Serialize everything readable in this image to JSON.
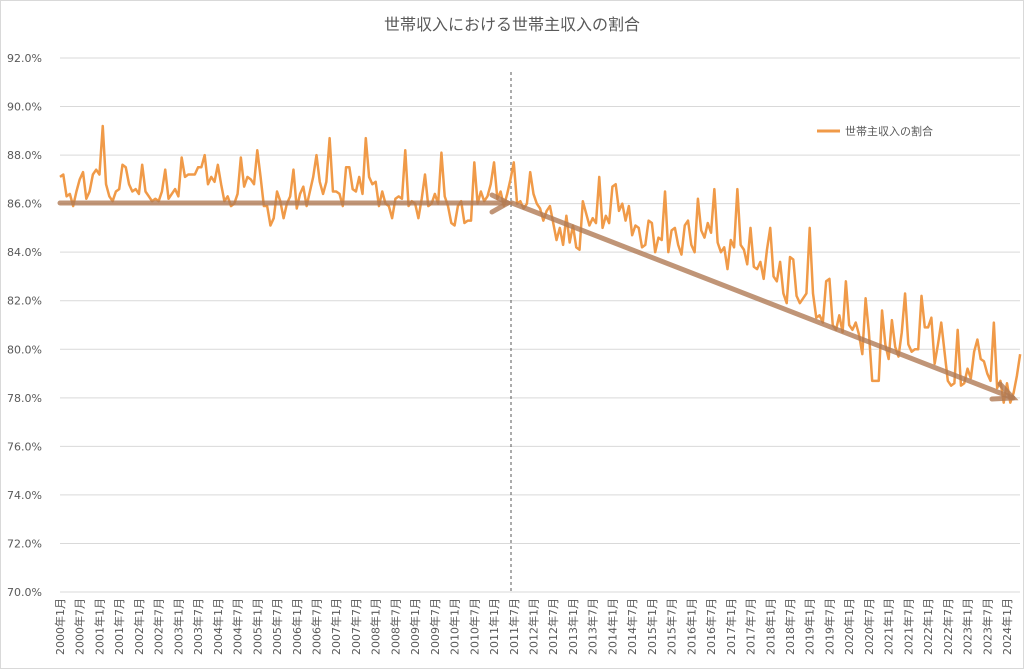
{
  "chart_data": {
    "type": "line",
    "title": "世帯収入における世帯主収入の割合",
    "categories": [
      "2000年1月",
      null,
      null,
      null,
      null,
      null,
      "2000年7月",
      null,
      null,
      null,
      null,
      null,
      "2001年1月",
      null,
      null,
      null,
      null,
      null,
      "2001年7月",
      null,
      null,
      null,
      null,
      null,
      "2002年1月",
      null,
      null,
      null,
      null,
      null,
      "2002年7月",
      null,
      null,
      null,
      null,
      null,
      "2003年1月",
      null,
      null,
      null,
      null,
      null,
      "2003年7月",
      null,
      null,
      null,
      null,
      null,
      "2004年1月",
      null,
      null,
      null,
      null,
      null,
      "2004年7月",
      null,
      null,
      null,
      null,
      null,
      "2005年1月",
      null,
      null,
      null,
      null,
      null,
      "2005年7月",
      null,
      null,
      null,
      null,
      null,
      "2006年1月",
      null,
      null,
      null,
      null,
      null,
      "2006年7月",
      null,
      null,
      null,
      null,
      null,
      "2007年1月",
      null,
      null,
      null,
      null,
      null,
      "2007年7月",
      null,
      null,
      null,
      null,
      null,
      "2008年1月",
      null,
      null,
      null,
      null,
      null,
      "2008年7月",
      null,
      null,
      null,
      null,
      null,
      "2009年1月",
      null,
      null,
      null,
      null,
      null,
      "2009年7月",
      null,
      null,
      null,
      null,
      null,
      "2010年1月",
      null,
      null,
      null,
      null,
      null,
      "2010年7月",
      null,
      null,
      null,
      null,
      null,
      "2011年1月",
      null,
      null,
      null,
      null,
      null,
      "2011年7月",
      null,
      null,
      null,
      null,
      null,
      "2012年1月",
      null,
      null,
      null,
      null,
      null,
      "2012年7月",
      null,
      null,
      null,
      null,
      null,
      "2013年1月",
      null,
      null,
      null,
      null,
      null,
      "2013年7月",
      null,
      null,
      null,
      null,
      null,
      "2014年1月",
      null,
      null,
      null,
      null,
      null,
      "2014年7月",
      null,
      null,
      null,
      null,
      null,
      "2015年1月",
      null,
      null,
      null,
      null,
      null,
      "2015年7月",
      null,
      null,
      null,
      null,
      null,
      "2016年1月",
      null,
      null,
      null,
      null,
      null,
      "2016年7月",
      null,
      null,
      null,
      null,
      null,
      "2017年1月",
      null,
      null,
      null,
      null,
      null,
      "2017年7月",
      null,
      null,
      null,
      null,
      null,
      "2018年1月",
      null,
      null,
      null,
      null,
      null,
      "2018年7月",
      null,
      null,
      null,
      null,
      null,
      "2019年1月",
      null,
      null,
      null,
      null,
      null,
      "2019年7月",
      null,
      null,
      null,
      null,
      null,
      "2020年1月",
      null,
      null,
      null,
      null,
      null,
      "2020年7月",
      null,
      null,
      null,
      null,
      null,
      "2021年1月",
      null,
      null,
      null,
      null,
      null,
      "2021年7月",
      null,
      null,
      null,
      null,
      null,
      "2022年1月",
      null,
      null,
      null,
      null,
      null,
      "2022年7月",
      null,
      null,
      null,
      null,
      null,
      "2023年1月",
      null,
      null,
      null,
      null,
      null,
      "2023年7月",
      null,
      null,
      null,
      null,
      null,
      "2024年1月",
      null,
      null,
      null,
      null
    ],
    "series": [
      {
        "name": "世帯主収入の割合",
        "color": "#f09a48",
        "values": [
          87.1,
          87.2,
          86.3,
          86.4,
          85.9,
          86.5,
          87.0,
          87.3,
          86.2,
          86.5,
          87.2,
          87.4,
          87.2,
          89.2,
          86.8,
          86.3,
          86.1,
          86.5,
          86.6,
          87.6,
          87.5,
          86.8,
          86.5,
          86.6,
          86.4,
          87.6,
          86.5,
          86.3,
          86.1,
          86.2,
          86.1,
          86.5,
          87.4,
          86.2,
          86.4,
          86.6,
          86.3,
          87.9,
          87.1,
          87.2,
          87.2,
          87.2,
          87.5,
          87.5,
          88.0,
          86.8,
          87.1,
          86.9,
          87.6,
          86.8,
          86.1,
          86.3,
          85.9,
          86.0,
          86.4,
          87.9,
          86.7,
          87.1,
          87.0,
          86.8,
          88.2,
          87.1,
          85.9,
          85.9,
          85.1,
          85.4,
          86.5,
          86.1,
          85.4,
          86.0,
          86.3,
          87.4,
          85.8,
          86.4,
          86.7,
          85.9,
          86.5,
          87.1,
          88.0,
          86.9,
          86.4,
          86.9,
          88.7,
          86.5,
          86.5,
          86.4,
          85.9,
          87.5,
          87.5,
          86.6,
          86.5,
          87.1,
          86.4,
          88.7,
          87.1,
          86.8,
          86.9,
          85.9,
          86.5,
          86.0,
          85.9,
          85.4,
          86.2,
          86.3,
          86.2,
          88.2,
          85.9,
          86.1,
          86.0,
          85.4,
          86.2,
          87.2,
          85.9,
          86.0,
          86.4,
          86.0,
          88.1,
          86.3,
          85.9,
          85.2,
          85.1,
          85.9,
          86.1,
          85.2,
          85.3,
          85.3,
          87.7,
          86.0,
          86.5,
          86.1,
          86.3,
          86.8,
          87.7,
          86.2,
          86.5,
          85.9,
          86.4,
          87.0,
          87.7,
          86.0,
          86.1,
          85.8,
          86.0,
          87.3,
          86.4,
          86.0,
          85.8,
          85.3,
          85.7,
          85.9,
          85.2,
          84.5,
          85.0,
          84.3,
          85.5,
          84.4,
          85.1,
          84.2,
          84.1,
          86.1,
          85.6,
          85.1,
          85.4,
          85.2,
          87.1,
          85.0,
          85.5,
          85.2,
          86.7,
          86.8,
          85.7,
          86.0,
          85.3,
          85.9,
          84.7,
          85.1,
          85.0,
          84.2,
          84.3,
          85.3,
          85.2,
          84.0,
          84.6,
          84.5,
          86.5,
          84.0,
          84.9,
          85.0,
          84.3,
          83.9,
          85.1,
          85.3,
          84.3,
          84.0,
          86.2,
          84.9,
          84.6,
          85.2,
          84.8,
          86.6,
          84.4,
          84.0,
          84.2,
          83.3,
          84.5,
          84.2,
          86.6,
          84.3,
          84.1,
          83.5,
          85.0,
          83.4,
          83.3,
          83.6,
          82.9,
          84.1,
          85.0,
          83.0,
          82.8,
          83.6,
          82.3,
          81.9,
          83.8,
          83.7,
          82.2,
          81.9,
          82.1,
          82.3,
          85.0,
          82.3,
          81.3,
          81.4,
          81.1,
          82.8,
          82.9,
          81.0,
          80.8,
          81.4,
          80.7,
          82.8,
          81.0,
          80.8,
          81.1,
          80.6,
          79.8,
          82.1,
          80.7,
          78.7,
          78.7,
          78.7,
          81.6,
          80.2,
          79.6,
          81.2,
          80.1,
          79.7,
          80.7,
          82.3,
          80.2,
          79.9,
          80.0,
          80.0,
          82.2,
          80.9,
          80.9,
          81.3,
          79.4,
          80.2,
          81.1,
          79.9,
          78.7,
          78.5,
          78.6,
          80.8,
          78.5,
          78.6,
          79.2,
          78.8,
          79.9,
          80.4,
          79.6,
          79.5,
          79.0,
          78.7,
          81.1,
          78.4,
          78.7,
          77.8,
          78.6,
          77.8,
          78.2,
          78.9,
          79.8
        ]
      }
    ],
    "ylim": [
      70,
      92
    ],
    "yticks": [
      {
        "value": 70,
        "label": "70.0%"
      },
      {
        "value": 72,
        "label": "72.0%"
      },
      {
        "value": 74,
        "label": "74.0%"
      },
      {
        "value": 76,
        "label": "76.0%"
      },
      {
        "value": 78,
        "label": "78.0%"
      },
      {
        "value": 80,
        "label": "80.0%"
      },
      {
        "value": 82,
        "label": "82.0%"
      },
      {
        "value": 84,
        "label": "84.0%"
      },
      {
        "value": 86,
        "label": "86.0%"
      },
      {
        "value": 88,
        "label": "88.0%"
      },
      {
        "value": 90,
        "label": "90.0%"
      },
      {
        "value": 92,
        "label": "92.0%"
      }
    ],
    "grid": true,
    "legend": "top-right"
  }
}
